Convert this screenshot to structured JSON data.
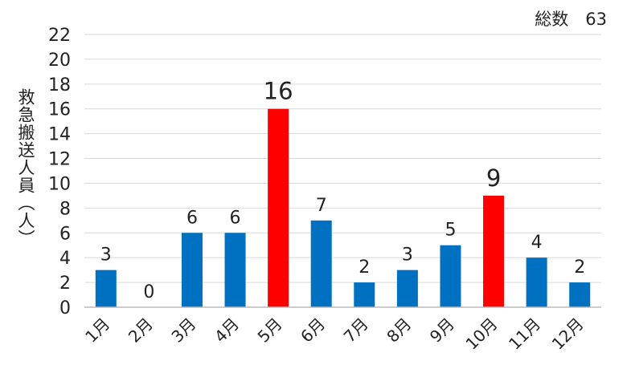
{
  "chart_data": {
    "type": "bar",
    "ylabel": "救急搬送人員（人）",
    "total_label": "総数　63",
    "categories": [
      "1月",
      "2月",
      "3月",
      "4月",
      "5月",
      "6月",
      "7月",
      "8月",
      "9月",
      "10月",
      "11月",
      "12月"
    ],
    "values": [
      3,
      0,
      6,
      6,
      16,
      7,
      2,
      3,
      5,
      9,
      4,
      2
    ],
    "highlight": [
      false,
      false,
      false,
      false,
      true,
      false,
      false,
      false,
      false,
      true,
      false,
      false
    ],
    "colors": {
      "normal": "#0070C0",
      "highlight": "#FF0000"
    },
    "ylim": [
      0,
      22
    ],
    "yticks": [
      0,
      2,
      4,
      6,
      8,
      10,
      12,
      14,
      16,
      18,
      20,
      22
    ],
    "grid": true
  }
}
